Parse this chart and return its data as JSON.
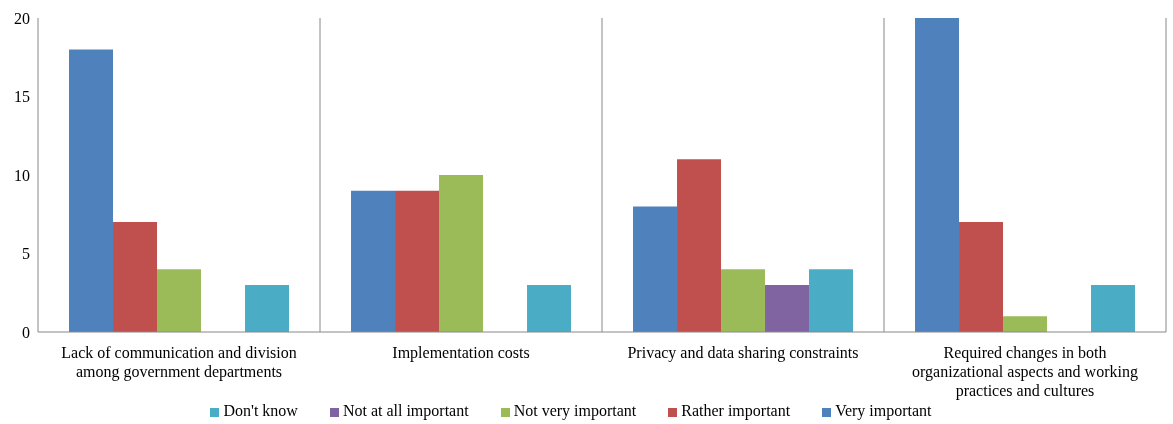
{
  "chart_data": {
    "type": "bar",
    "categories": [
      "Lack of communication and division among government departments",
      "Implementation costs",
      "Privacy and data sharing constraints",
      "Required changes in both organizational aspects and working practices and cultures"
    ],
    "series": [
      {
        "name": "Very important",
        "color": "#4f81bd",
        "values": [
          18,
          9,
          8,
          20
        ]
      },
      {
        "name": "Rather important",
        "color": "#c0504d",
        "values": [
          7,
          9,
          11,
          7
        ]
      },
      {
        "name": "Not very important",
        "color": "#9bbb59",
        "values": [
          4,
          10,
          4,
          1
        ]
      },
      {
        "name": "Not at all important",
        "color": "#8064a2",
        "values": [
          null,
          null,
          3,
          null
        ]
      },
      {
        "name": "Don't know",
        "color": "#4bacc6",
        "values": [
          3,
          3,
          4,
          3
        ]
      }
    ],
    "ylim": [
      0,
      20
    ],
    "yticks": [
      0,
      5,
      10,
      15,
      20
    ],
    "grid": "x",
    "legend": "bottom"
  }
}
